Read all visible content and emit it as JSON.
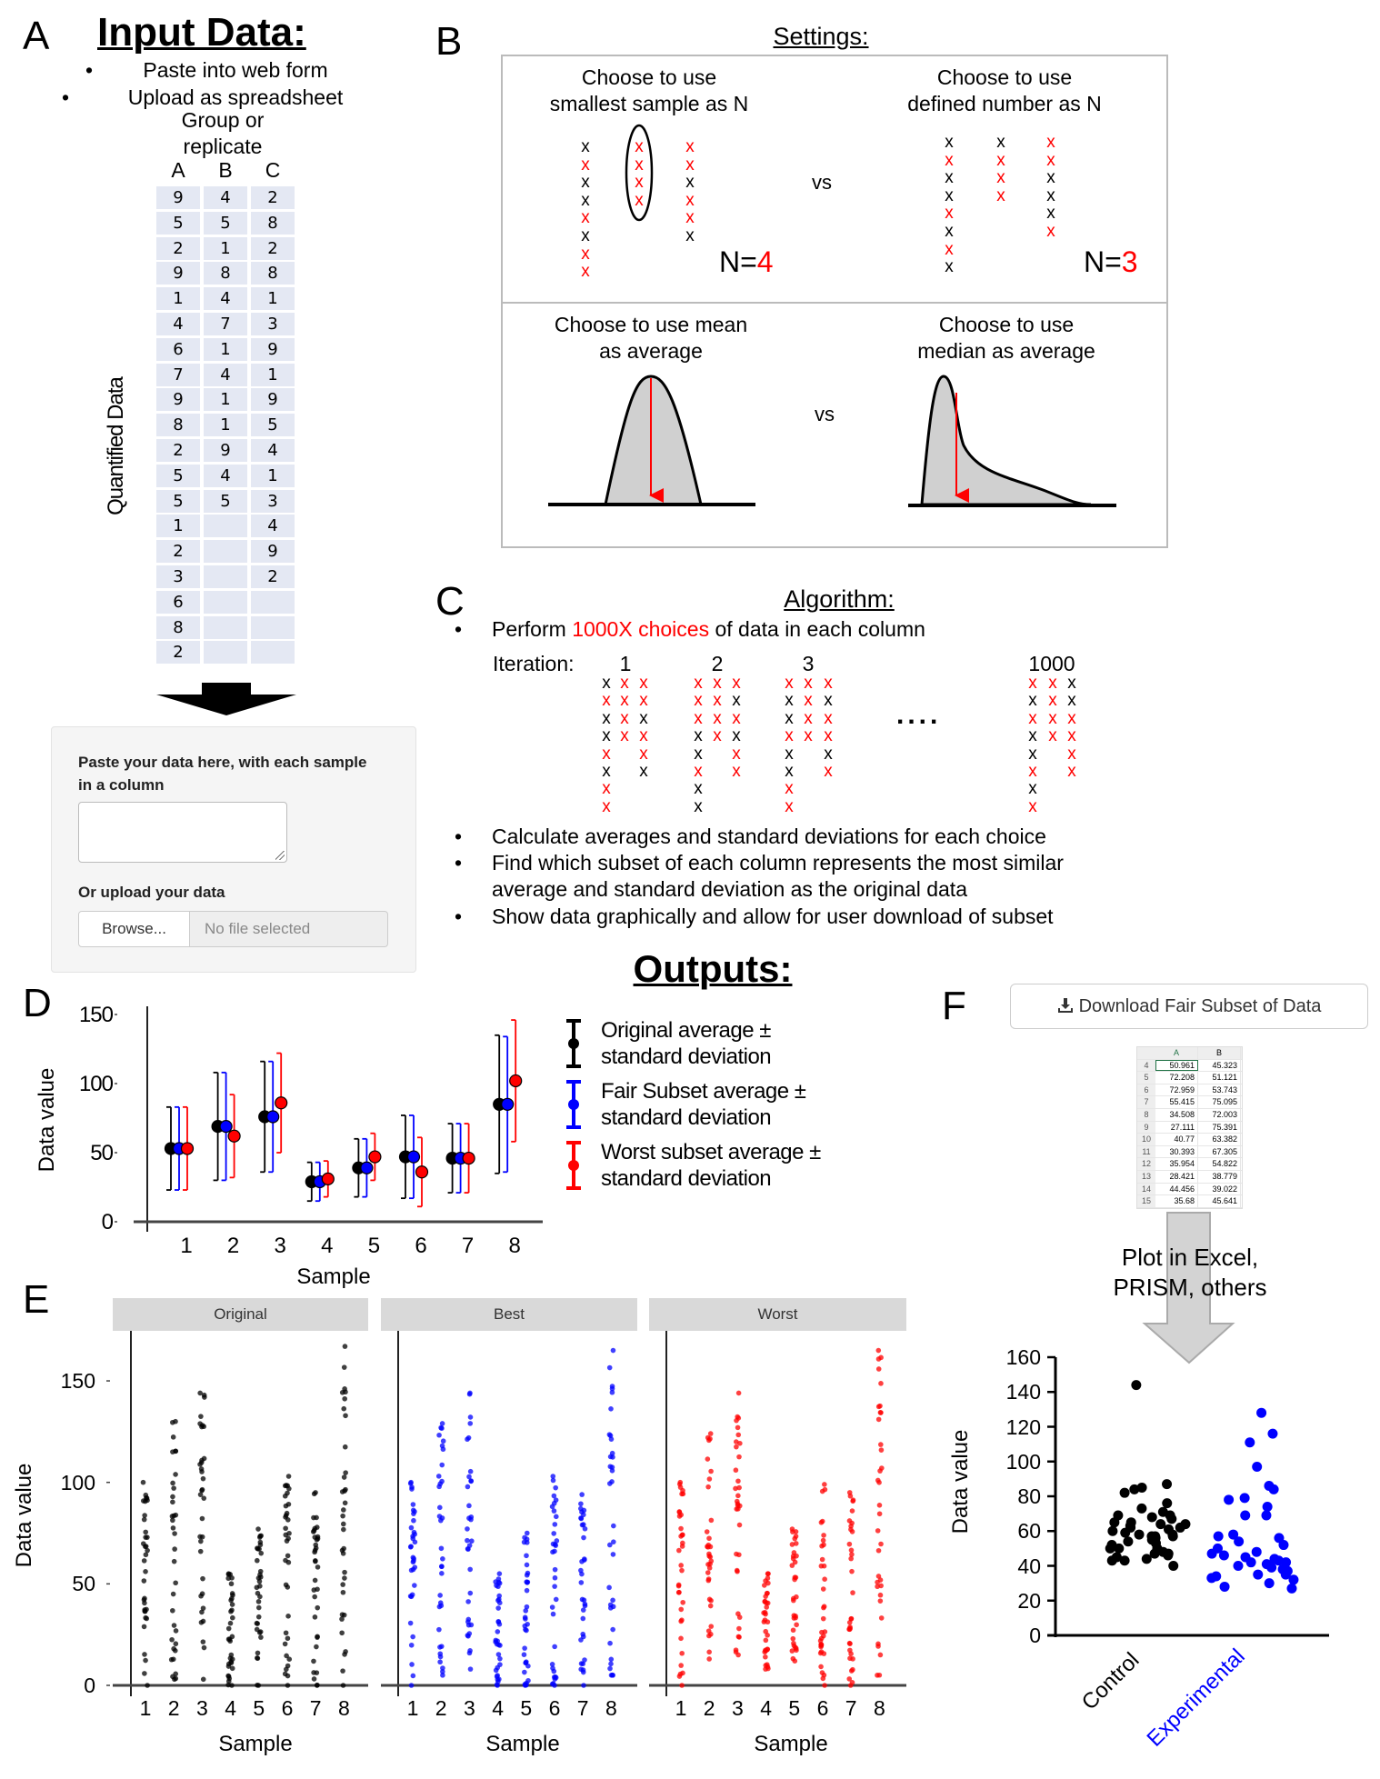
{
  "panelA": {
    "letter": "A",
    "title": "Input Data:",
    "bullets": [
      "Paste into web form",
      "Upload as spreadsheet"
    ],
    "group_label_1": "Group or",
    "group_label_2": "replicate",
    "columns": [
      "A",
      "B",
      "C"
    ],
    "y_label": "Quantified Data",
    "table": [
      [
        "9",
        "4",
        "2"
      ],
      [
        "5",
        "5",
        "8"
      ],
      [
        "2",
        "1",
        "2"
      ],
      [
        "9",
        "8",
        "8"
      ],
      [
        "1",
        "4",
        "1"
      ],
      [
        "4",
        "7",
        "3"
      ],
      [
        "6",
        "1",
        "9"
      ],
      [
        "7",
        "4",
        "1"
      ],
      [
        "9",
        "1",
        "9"
      ],
      [
        "8",
        "1",
        "5"
      ],
      [
        "2",
        "9",
        "4"
      ],
      [
        "5",
        "4",
        "1"
      ],
      [
        "5",
        "5",
        "3"
      ],
      [
        "1",
        "",
        "4"
      ],
      [
        "2",
        "",
        "9"
      ],
      [
        "3",
        "",
        "2"
      ],
      [
        "6",
        "",
        ""
      ],
      [
        "8",
        "",
        ""
      ],
      [
        "2",
        "",
        ""
      ]
    ],
    "form": {
      "paste_label": "Paste your data here, with each sample in a column",
      "paste_value": "",
      "upload_label": "Or upload your data",
      "browse_label": "Browse...",
      "file_status": "No file selected"
    }
  },
  "panelB": {
    "letter": "B",
    "title": "Settings:",
    "top_left": {
      "line1": "Choose to use",
      "line2": "smallest sample as N",
      "n_prefix": "N=",
      "n_value": "4",
      "columns": [
        "xrxxrxrr",
        "rrrr",
        "rrxrrx"
      ]
    },
    "top_right": {
      "line1": "Choose to use",
      "line2": "defined number as N",
      "n_prefix": "N=",
      "n_value": "3",
      "columns": [
        "xrxxrxrx",
        "xrrr",
        "rrxxxr"
      ]
    },
    "vs": "vs",
    "bottom_left": {
      "line1": "Choose to use mean",
      "line2": "as average"
    },
    "bottom_right": {
      "line1": "Choose to use",
      "line2": "median as average"
    },
    "mark": "x",
    "colors": {
      "highlight": "#ff0000",
      "normal": "#000000",
      "curve_fill": "#d0d0d0"
    }
  },
  "panelC": {
    "letter": "C",
    "title": "Algorithm:",
    "bullet1_pre": "Perform ",
    "bullet1_highlight": "1000X choices",
    "bullet1_post": " of data in each column",
    "iteration_label": "Iteration:",
    "iterations": [
      {
        "label": "1",
        "columns": [
          "xrxxrxrr",
          "rrrr",
          "rrxrrx"
        ]
      },
      {
        "label": "2",
        "columns": [
          "rrrxxrxx",
          "rrrr",
          "rxrxrr"
        ]
      },
      {
        "label": "3",
        "columns": [
          "rxxrxxrr",
          "rrrr",
          "rxrrxr"
        ]
      },
      {
        "label": "1000",
        "columns": [
          "rxrxxrxr",
          "rrrr",
          "xxrrrr"
        ]
      }
    ],
    "ellipsis": "....",
    "bullets": [
      "Calculate averages and standard deviations for each choice",
      "Find which subset of each column represents the most similar",
      "average and standard deviation as the original data",
      "Show data graphically and allow for user download of subset"
    ]
  },
  "outputs_title": "Outputs:",
  "panelD": {
    "letter": "D"
  },
  "panelE": {
    "letter": "E"
  },
  "panelF": {
    "letter": "F",
    "download_label": "Download Fair Subset of Data",
    "download_icon": "download-icon",
    "spreadsheet": {
      "headers": [
        "A",
        "B"
      ],
      "rows": [
        {
          "n": "4",
          "a": "50.961",
          "b": "45.323"
        },
        {
          "n": "5",
          "a": "72.208",
          "b": "51.121"
        },
        {
          "n": "6",
          "a": "72.959",
          "b": "53.743"
        },
        {
          "n": "7",
          "a": "55.415",
          "b": "75.095"
        },
        {
          "n": "8",
          "a": "34.508",
          "b": "72.003"
        },
        {
          "n": "9",
          "a": "27.111",
          "b": "75.391"
        },
        {
          "n": "10",
          "a": "40.77",
          "b": "63.382"
        },
        {
          "n": "11",
          "a": "30.393",
          "b": "67.305"
        },
        {
          "n": "12",
          "a": "35.954",
          "b": "54.822"
        },
        {
          "n": "13",
          "a": "28.421",
          "b": "38.779"
        },
        {
          "n": "14",
          "a": "44.456",
          "b": "39.022"
        },
        {
          "n": "15",
          "a": "35.68",
          "b": "45.641"
        }
      ]
    },
    "arrow_text_1": "Plot in Excel,",
    "arrow_text_2": "PRISM, others"
  },
  "chart_data": [
    {
      "id": "D",
      "type": "scatter",
      "subtype": "mean-with-error-bars",
      "xlabel": "Sample",
      "ylabel": "Data value",
      "categories": [
        "1",
        "2",
        "3",
        "4",
        "5",
        "6",
        "7",
        "8"
      ],
      "ylim": [
        0,
        150
      ],
      "yticks": [
        "0",
        "50",
        "100",
        "150"
      ],
      "grid": false,
      "legend_position": "right",
      "series": [
        {
          "name": "Original average ± standard deviation",
          "legend_1": "Original average ±",
          "legend_2": "standard deviation",
          "color": "#000000",
          "mean": [
            53,
            69,
            76,
            29,
            39,
            47,
            46,
            85
          ],
          "sd": [
            30,
            39,
            40,
            14,
            21,
            30,
            25,
            50
          ]
        },
        {
          "name": "Fair Subset average ± standard deviation",
          "legend_1": "Fair Subset average ±",
          "legend_2": "standard deviation",
          "color": "#0000ff",
          "mean": [
            53,
            69,
            76,
            29,
            39,
            47,
            46,
            85
          ],
          "sd": [
            30,
            39,
            40,
            14,
            21,
            30,
            25,
            49
          ]
        },
        {
          "name": "Worst subset average ± standard deviation",
          "legend_1": "Worst subset average ±",
          "legend_2": "standard deviation",
          "color": "#ff0000",
          "mean": [
            53,
            62,
            86,
            31,
            47,
            36,
            46,
            102
          ],
          "sd": [
            30,
            30,
            36,
            13,
            17,
            25,
            25,
            44
          ]
        }
      ]
    },
    {
      "id": "E",
      "type": "scatter",
      "subtype": "faceted-strip-plot",
      "xlabel": "Sample",
      "ylabel": "Data value",
      "categories": [
        "1",
        "2",
        "3",
        "4",
        "5",
        "6",
        "7",
        "8"
      ],
      "ylim": [
        0,
        170
      ],
      "yticks": [
        "0",
        "50",
        "100",
        "150"
      ],
      "grid": false,
      "facets": [
        {
          "name": "Original",
          "color": "#000000",
          "ranges": [
            [
              0,
              100
            ],
            [
              3,
              130
            ],
            [
              3,
              144
            ],
            [
              0,
              55
            ],
            [
              0,
              77
            ],
            [
              0,
              103
            ],
            [
              0,
              95
            ],
            [
              0,
              167
            ]
          ]
        },
        {
          "name": "Best",
          "color": "#0000ff",
          "ranges": [
            [
              0,
              100
            ],
            [
              5,
              129
            ],
            [
              8,
              144
            ],
            [
              0,
              55
            ],
            [
              0,
              75
            ],
            [
              0,
              103
            ],
            [
              0,
              94
            ],
            [
              5,
              165
            ]
          ]
        },
        {
          "name": "Worst",
          "color": "#ff0000",
          "ranges": [
            [
              0,
              100
            ],
            [
              13,
              124
            ],
            [
              15,
              144
            ],
            [
              8,
              55
            ],
            [
              12,
              77
            ],
            [
              0,
              99
            ],
            [
              0,
              95
            ],
            [
              5,
              165
            ]
          ]
        }
      ]
    },
    {
      "id": "F",
      "type": "scatter",
      "subtype": "dot-plot",
      "ylabel": "Data value",
      "ylim": [
        0,
        160
      ],
      "yticks": [
        "0",
        "20",
        "40",
        "60",
        "80",
        "100",
        "120",
        "140",
        "160"
      ],
      "grid": false,
      "series": [
        {
          "name": "Control",
          "color": "#000000",
          "values": [
            144,
            87,
            84,
            82,
            85,
            76,
            71,
            73,
            69,
            69,
            68,
            67,
            65,
            65,
            64,
            64,
            63,
            62,
            62,
            61,
            60,
            59,
            58,
            58,
            57,
            57,
            57,
            56,
            55,
            54,
            53,
            52,
            50,
            50,
            50,
            48,
            47,
            47,
            46,
            45,
            44,
            43,
            43,
            40
          ]
        },
        {
          "name": "Experimental",
          "color": "#0000ff",
          "values": [
            128,
            116,
            111,
            97,
            86,
            84,
            79,
            78,
            74,
            69,
            69,
            58,
            57,
            56,
            54,
            52,
            50,
            48,
            47,
            46,
            45,
            44,
            43,
            42,
            42,
            41,
            40,
            39,
            38,
            37,
            35,
            35,
            34,
            33,
            32,
            30,
            28,
            27
          ]
        }
      ]
    }
  ]
}
